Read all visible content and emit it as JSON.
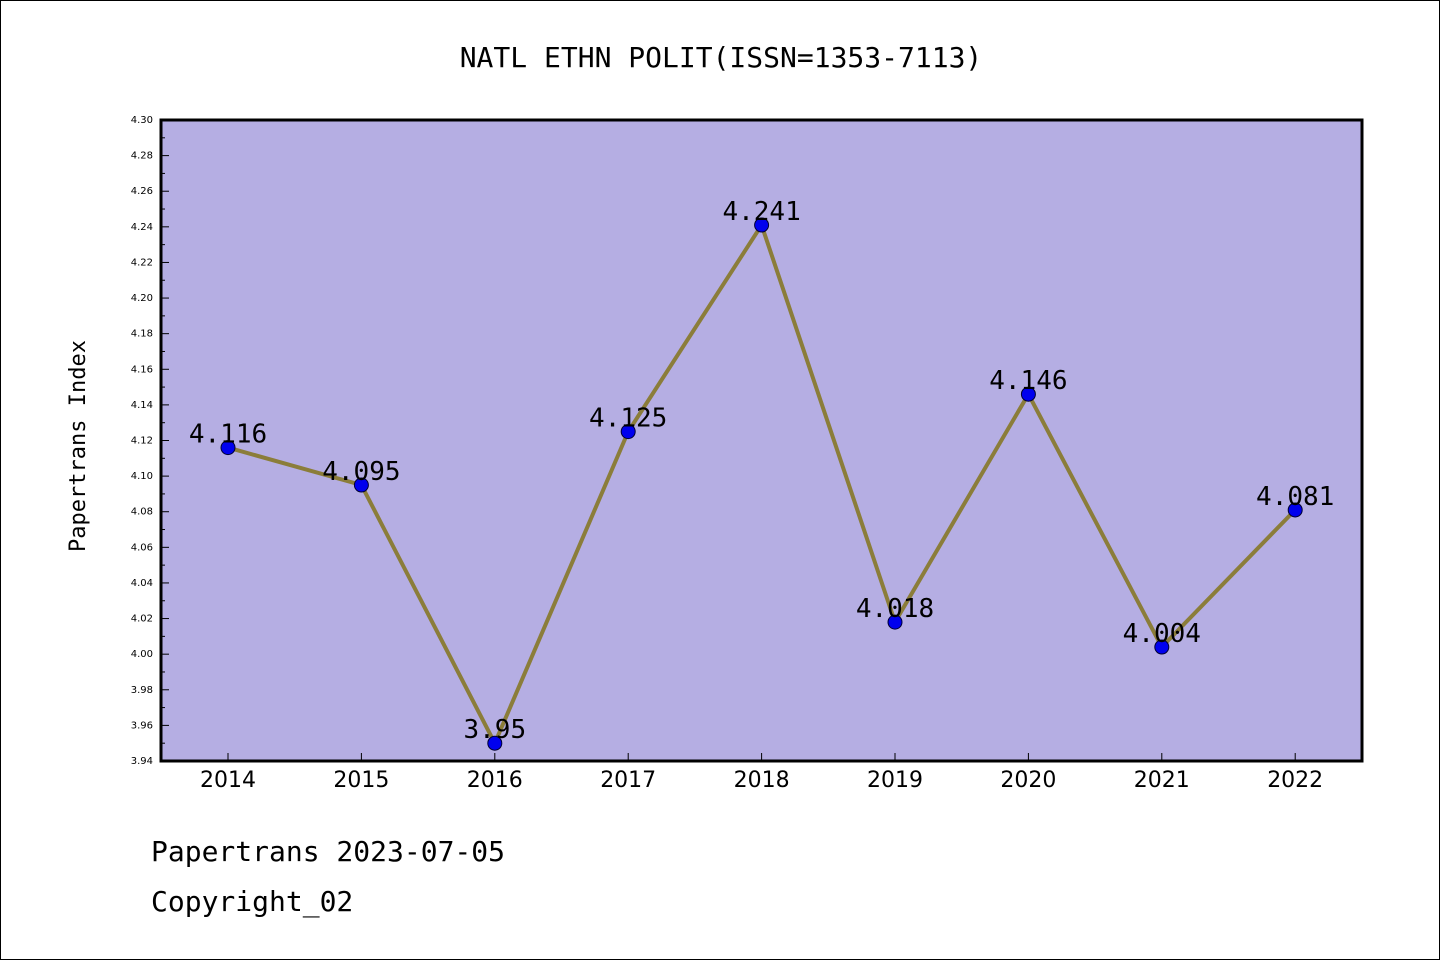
{
  "chart_data": {
    "type": "line",
    "title": "NATL ETHN POLIT(ISSN=1353-7113)",
    "xlabel": "",
    "ylabel": "Papertrans Index",
    "categories": [
      "2014",
      "2015",
      "2016",
      "2017",
      "2018",
      "2019",
      "2020",
      "2021",
      "2022"
    ],
    "series": [
      {
        "values": [
          4.116,
          4.095,
          3.95,
          4.125,
          4.241,
          4.018,
          4.146,
          4.004,
          4.081
        ],
        "data_labels": [
          "4.116",
          "4.095",
          "3.95",
          "4.125",
          "4.241",
          "4.018",
          "4.146",
          "4.004",
          "4.081"
        ]
      }
    ],
    "ylim": [
      3.94,
      4.3
    ],
    "yticks": [
      "3.94",
      "3.96",
      "3.98",
      "4.00",
      "4.02",
      "4.04",
      "4.06",
      "4.08",
      "4.10",
      "4.12",
      "4.14",
      "4.16",
      "4.18",
      "4.20",
      "4.22",
      "4.24",
      "4.26",
      "4.28",
      "4.30"
    ],
    "grid": false,
    "legend": "none",
    "colors": {
      "plot_background": "#b5aee3",
      "line": "#8b7d3a",
      "marker": "#0000ee",
      "axes": "#000000"
    }
  },
  "footer": {
    "line1": "Papertrans 2023-07-05",
    "line2": "Copyright_02"
  }
}
